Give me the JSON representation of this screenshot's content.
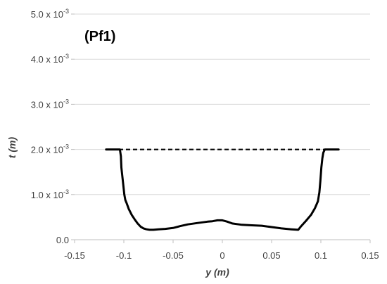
{
  "chart_data": {
    "type": "line",
    "title": "",
    "annotation": "(Pf1)",
    "xlabel": {
      "var": "y",
      "unit": " (m)"
    },
    "ylabel": {
      "var": "t",
      "unit": " (m)"
    },
    "xlim": [
      -0.15,
      0.15
    ],
    "ylim": [
      0,
      0.005
    ],
    "grid": "horizontal",
    "legend": "none",
    "x_ticks": [
      {
        "value": -0.15,
        "label": "-0.15"
      },
      {
        "value": -0.1,
        "label": "-0.1"
      },
      {
        "value": -0.05,
        "label": "-0.05"
      },
      {
        "value": 0,
        "label": "0"
      },
      {
        "value": 0.05,
        "label": "0.05"
      },
      {
        "value": 0.1,
        "label": "0.1"
      },
      {
        "value": 0.15,
        "label": "0.15"
      }
    ],
    "y_ticks": [
      {
        "value": 0,
        "base": "0.0",
        "exp": ""
      },
      {
        "value": 0.001,
        "base": "1.0 x 10",
        "exp": "-3"
      },
      {
        "value": 0.002,
        "base": "2.0 x 10",
        "exp": "-3"
      },
      {
        "value": 0.003,
        "base": "3.0 x 10",
        "exp": "-3"
      },
      {
        "value": 0.004,
        "base": "4.0 x 10",
        "exp": "-3"
      },
      {
        "value": 0.005,
        "base": "5.0 x 10",
        "exp": "-3"
      }
    ],
    "series": [
      {
        "style": "solid",
        "color": "#000000",
        "x": [
          -0.118,
          -0.104,
          -0.103,
          -0.1025,
          -0.101,
          -0.0995,
          -0.0985,
          -0.097,
          -0.095,
          -0.092,
          -0.089,
          -0.086,
          -0.083,
          -0.08,
          -0.077,
          -0.074,
          -0.07,
          -0.065,
          -0.058,
          -0.05,
          -0.043,
          -0.035,
          -0.025,
          -0.015,
          -0.01,
          -0.005,
          0,
          0.005,
          0.01,
          0.02,
          0.03,
          0.04,
          0.05,
          0.06,
          0.07,
          0.077,
          0.08,
          0.085,
          0.09,
          0.094,
          0.097,
          0.0985,
          0.0995,
          0.1005,
          0.1015,
          0.1025,
          0.104,
          0.118
        ],
        "y": [
          0.002,
          0.002,
          0.00185,
          0.0016,
          0.0013,
          0.001,
          0.00088,
          0.0008,
          0.00068,
          0.00055,
          0.00045,
          0.00036,
          0.00029,
          0.00025,
          0.00023,
          0.00022,
          0.00022,
          0.00023,
          0.00024,
          0.00026,
          0.0003,
          0.00034,
          0.00037,
          0.0004,
          0.00041,
          0.00043,
          0.00043,
          0.0004,
          0.00036,
          0.00033,
          0.00032,
          0.00031,
          0.00028,
          0.00025,
          0.00023,
          0.00022,
          0.0003,
          0.00042,
          0.00055,
          0.0007,
          0.00085,
          0.00105,
          0.0013,
          0.0016,
          0.0018,
          0.00193,
          0.002,
          0.002
        ]
      },
      {
        "style": "dashed",
        "color": "#000000",
        "x": [
          -0.105,
          0.105
        ],
        "y": [
          0.002,
          0.002
        ]
      }
    ]
  }
}
